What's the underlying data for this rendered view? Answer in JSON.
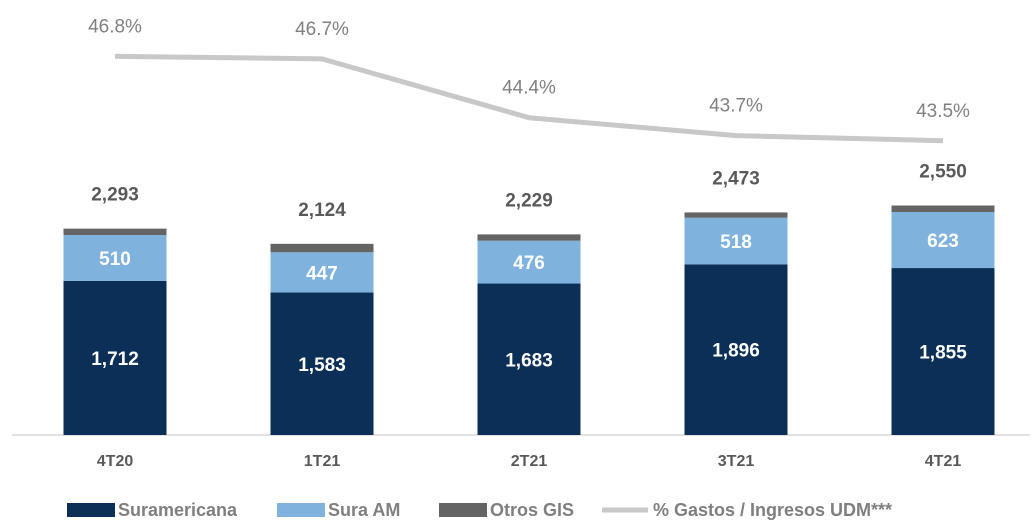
{
  "chart_data": {
    "type": "bar",
    "categories": [
      "4T20",
      "1T21",
      "2T21",
      "3T21",
      "4T21"
    ],
    "series": [
      {
        "name": "Suramericana",
        "color": "#0b2f56",
        "values": [
          1712,
          1583,
          1683,
          1896,
          1855
        ],
        "value_labels": [
          "1,712",
          "1,583",
          "1,683",
          "1,896",
          "1,855"
        ]
      },
      {
        "name": "Sura AM",
        "color": "#7fb3dd",
        "values": [
          510,
          447,
          476,
          518,
          623
        ]
      },
      {
        "name": "Otros GIS",
        "color": "#646464",
        "values": [
          71,
          94,
          70,
          59,
          72
        ]
      },
      {
        "name": "% Gastos / Ingresos UDM***",
        "type": "line",
        "axis": "y2",
        "color": "#c8c8c8",
        "values": [
          46.8,
          46.7,
          44.4,
          43.7,
          43.5
        ],
        "value_labels": [
          "46.8%",
          "46.7%",
          "44.4%",
          "43.7%",
          "43.5%"
        ]
      }
    ],
    "totals": [
      2293,
      2124,
      2229,
      2473,
      2550
    ],
    "totals_labels": [
      "2,293",
      "2,124",
      "2,229",
      "2,473",
      "2,550"
    ],
    "ylim": [
      0,
      4800
    ],
    "y2lim": [
      32,
      49
    ]
  }
}
